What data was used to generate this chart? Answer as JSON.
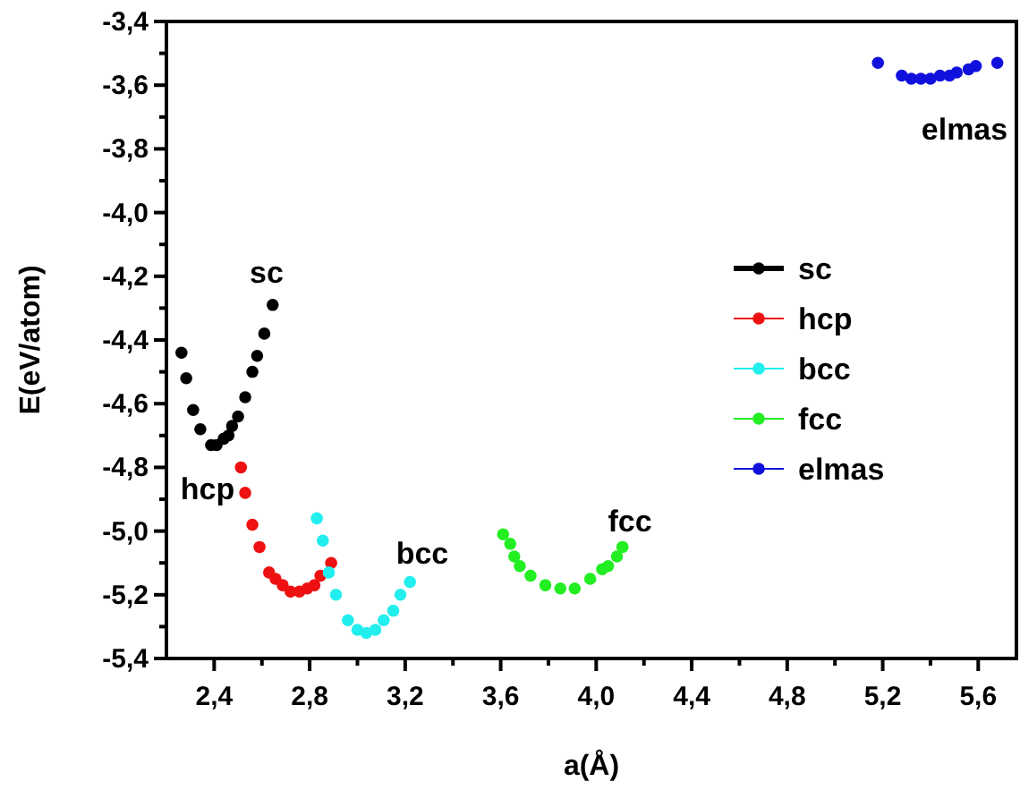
{
  "chart_data": {
    "type": "scatter",
    "xlabel": "a(Å)",
    "ylabel": "E(eV/atom)",
    "xlim": [
      2.2,
      5.76
    ],
    "ylim": [
      -5.4,
      -3.4
    ],
    "xticks": [
      {
        "value": 2.4,
        "label": "2,4"
      },
      {
        "value": 2.6,
        "label": null
      },
      {
        "value": 2.8,
        "label": "2,8"
      },
      {
        "value": 3.0,
        "label": null
      },
      {
        "value": 3.2,
        "label": "3,2"
      },
      {
        "value": 3.4,
        "label": null
      },
      {
        "value": 3.6,
        "label": "3,6"
      },
      {
        "value": 3.8,
        "label": null
      },
      {
        "value": 4.0,
        "label": "4,0"
      },
      {
        "value": 4.2,
        "label": null
      },
      {
        "value": 4.4,
        "label": "4,4"
      },
      {
        "value": 4.6,
        "label": null
      },
      {
        "value": 4.8,
        "label": "4,8"
      },
      {
        "value": 5.0,
        "label": null
      },
      {
        "value": 5.2,
        "label": "5,2"
      },
      {
        "value": 5.4,
        "label": null
      },
      {
        "value": 5.6,
        "label": "5,6"
      }
    ],
    "yticks": [
      {
        "value": -5.4,
        "label": "-5,4"
      },
      {
        "value": -5.3,
        "label": null
      },
      {
        "value": -5.2,
        "label": "-5,2"
      },
      {
        "value": -5.1,
        "label": null
      },
      {
        "value": -5.0,
        "label": "-5,0"
      },
      {
        "value": -4.9,
        "label": null
      },
      {
        "value": -4.8,
        "label": "-4,8"
      },
      {
        "value": -4.7,
        "label": null
      },
      {
        "value": -4.6,
        "label": "-4,6"
      },
      {
        "value": -4.5,
        "label": null
      },
      {
        "value": -4.4,
        "label": "-4,4"
      },
      {
        "value": -4.3,
        "label": null
      },
      {
        "value": -4.2,
        "label": "-4,2"
      },
      {
        "value": -4.1,
        "label": null
      },
      {
        "value": -4.0,
        "label": "-4,0"
      },
      {
        "value": -3.9,
        "label": null
      },
      {
        "value": -3.8,
        "label": "-3,8"
      },
      {
        "value": -3.7,
        "label": null
      },
      {
        "value": -3.6,
        "label": "-3,6"
      },
      {
        "value": -3.5,
        "label": null
      },
      {
        "value": -3.4,
        "label": "-3,4"
      }
    ],
    "marker": "circle",
    "legend": "right",
    "grid": false,
    "series": [
      {
        "name": "sc",
        "color": "#000000",
        "x": [
          2.263,
          2.283,
          2.312,
          2.342,
          2.387,
          2.41,
          2.44,
          2.46,
          2.475,
          2.5,
          2.53,
          2.56,
          2.58,
          2.61,
          2.645
        ],
        "values": [
          -4.44,
          -4.52,
          -4.62,
          -4.68,
          -4.73,
          -4.73,
          -4.71,
          -4.7,
          -4.67,
          -4.64,
          -4.58,
          -4.5,
          -4.45,
          -4.38,
          -4.29
        ]
      },
      {
        "name": "hcp",
        "color": "#ee1111",
        "x": [
          2.512,
          2.53,
          2.56,
          2.59,
          2.63,
          2.657,
          2.687,
          2.72,
          2.757,
          2.79,
          2.82,
          2.845,
          2.89
        ],
        "values": [
          -4.8,
          -4.88,
          -4.98,
          -5.05,
          -5.13,
          -5.15,
          -5.17,
          -5.19,
          -5.19,
          -5.18,
          -5.17,
          -5.14,
          -5.1
        ]
      },
      {
        "name": "bcc",
        "color": "#22eeee",
        "x": [
          2.83,
          2.855,
          2.88,
          2.91,
          2.96,
          3.0,
          3.037,
          3.075,
          3.11,
          3.15,
          3.18,
          3.22
        ],
        "values": [
          -4.96,
          -5.03,
          -5.13,
          -5.2,
          -5.28,
          -5.31,
          -5.32,
          -5.31,
          -5.28,
          -5.25,
          -5.2,
          -5.16
        ]
      },
      {
        "name": "fcc",
        "color": "#22ee22",
        "x": [
          3.61,
          3.64,
          3.657,
          3.68,
          3.725,
          3.787,
          3.85,
          3.91,
          3.975,
          4.025,
          4.05,
          4.087,
          4.11
        ],
        "values": [
          -5.01,
          -5.04,
          -5.08,
          -5.11,
          -5.14,
          -5.17,
          -5.18,
          -5.18,
          -5.15,
          -5.12,
          -5.11,
          -5.08,
          -5.05
        ]
      },
      {
        "name": "elmas",
        "color": "#1111dd",
        "x": [
          5.18,
          5.28,
          5.32,
          5.36,
          5.4,
          5.44,
          5.48,
          5.51,
          5.56,
          5.59,
          5.68
        ],
        "values": [
          -3.53,
          -3.57,
          -3.58,
          -3.58,
          -3.58,
          -3.57,
          -3.57,
          -3.56,
          -3.55,
          -3.54,
          -3.53
        ]
      }
    ],
    "annotations": [
      "sc",
      "hcp",
      "bcc",
      "fcc",
      "elmas"
    ]
  }
}
